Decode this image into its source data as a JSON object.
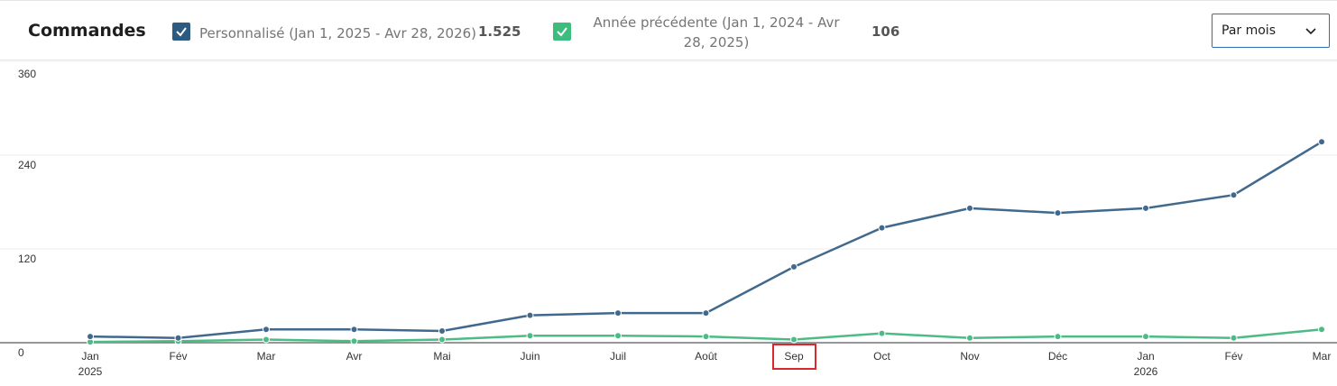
{
  "header": {
    "title": "Commandes",
    "legend": [
      {
        "label": "Personnalisé (Jan 1, 2025 - Avr 28, 2026)",
        "total": "1.525"
      },
      {
        "label": "Année précédente (Jan 1, 2024 - Avr 28, 2025)",
        "total": "106"
      }
    ],
    "interval": "Par mois"
  },
  "chart_data": {
    "type": "line",
    "categories": [
      "Jan",
      "Fév",
      "Mar",
      "Avr",
      "Mai",
      "Juin",
      "Juil",
      "Août",
      "Sep",
      "Oct",
      "Nov",
      "Déc",
      "Jan",
      "Fév",
      "Mar"
    ],
    "sublabels": [
      "2025",
      null,
      null,
      null,
      null,
      null,
      null,
      null,
      null,
      null,
      null,
      null,
      "2026",
      null,
      null
    ],
    "highlighted_category": "Sep",
    "series": [
      {
        "name": "Personnalisé (Jan 1, 2025 - Avr 28, 2026)",
        "color": "#41698e",
        "values": [
          8,
          6,
          17,
          17,
          15,
          35,
          38,
          38,
          97,
          147,
          172,
          166,
          172,
          189,
          257
        ]
      },
      {
        "name": "Année précédente (Jan 1, 2024 - Avr 28, 2025)",
        "color": "#4cbb85",
        "values": [
          1,
          2,
          4,
          2,
          4,
          9,
          9,
          8,
          4,
          12,
          6,
          8,
          8,
          6,
          17
        ]
      }
    ],
    "ylim": [
      0,
      360
    ],
    "yticks": [
      0,
      120,
      240,
      360
    ],
    "grid": true
  }
}
